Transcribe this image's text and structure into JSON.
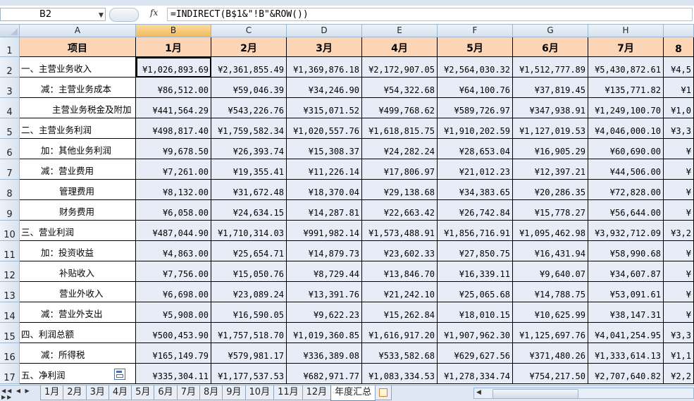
{
  "formula_bar": {
    "name_box": "B2",
    "fx_label": "fx",
    "formula": "=INDIRECT(B$1&\"!B\"&ROW())"
  },
  "columns": [
    "A",
    "B",
    "C",
    "D",
    "E",
    "F",
    "G",
    "H",
    ""
  ],
  "row_numbers": [
    "1",
    "2",
    "3",
    "4",
    "5",
    "6",
    "7",
    "8",
    "9",
    "10",
    "11",
    "12",
    "13",
    "14",
    "15",
    "16",
    "17"
  ],
  "header_row": {
    "label": "项目",
    "months": [
      "1月",
      "2月",
      "3月",
      "4月",
      "5月",
      "6月",
      "7月",
      "8"
    ]
  },
  "rows": [
    {
      "label": "一、主营业务收入",
      "indent": 0,
      "values": [
        "¥1,026,893.69",
        "¥2,361,855.49",
        "¥1,369,876.18",
        "¥2,172,907.05",
        "¥2,564,030.32",
        "¥1,512,777.89",
        "¥5,430,872.61",
        "¥4,5"
      ]
    },
    {
      "label": "减：主营业务成本",
      "indent": 1,
      "values": [
        "¥86,512.00",
        "¥59,046.39",
        "¥34,246.90",
        "¥54,322.68",
        "¥64,100.76",
        "¥37,819.45",
        "¥135,771.82",
        "¥1"
      ]
    },
    {
      "label": "主营业务税金及附加",
      "indent": 2,
      "values": [
        "¥441,564.29",
        "¥543,226.76",
        "¥315,071.52",
        "¥499,768.62",
        "¥589,726.97",
        "¥347,938.91",
        "¥1,249,100.70",
        "¥1,0"
      ]
    },
    {
      "label": "二、主营业务利润",
      "indent": 0,
      "values": [
        "¥498,817.40",
        "¥1,759,582.34",
        "¥1,020,557.76",
        "¥1,618,815.75",
        "¥1,910,202.59",
        "¥1,127,019.53",
        "¥4,046,000.10",
        "¥3,3"
      ]
    },
    {
      "label": "加：其他业务利润",
      "indent": 1,
      "values": [
        "¥9,678.50",
        "¥26,393.74",
        "¥15,308.37",
        "¥24,282.24",
        "¥28,653.04",
        "¥16,905.29",
        "¥60,690.00",
        "¥"
      ]
    },
    {
      "label": "减：营业费用",
      "indent": 1,
      "values": [
        "¥7,261.00",
        "¥19,355.41",
        "¥11,226.14",
        "¥17,806.97",
        "¥21,012.23",
        "¥12,397.21",
        "¥44,506.00",
        "¥"
      ]
    },
    {
      "label": "管理费用",
      "indent": 3,
      "values": [
        "¥8,132.00",
        "¥31,672.48",
        "¥18,370.04",
        "¥29,138.68",
        "¥34,383.65",
        "¥20,286.35",
        "¥72,828.00",
        "¥"
      ]
    },
    {
      "label": "财务费用",
      "indent": 3,
      "values": [
        "¥6,058.00",
        "¥24,634.15",
        "¥14,287.81",
        "¥22,663.42",
        "¥26,742.84",
        "¥15,778.27",
        "¥56,644.00",
        "¥"
      ]
    },
    {
      "label": "三、营业利润",
      "indent": 0,
      "values": [
        "¥487,044.90",
        "¥1,710,314.03",
        "¥991,982.14",
        "¥1,573,488.91",
        "¥1,856,716.91",
        "¥1,095,462.98",
        "¥3,932,712.09",
        "¥3,2"
      ]
    },
    {
      "label": "加：投资收益",
      "indent": 1,
      "values": [
        "¥4,863.00",
        "¥25,654.71",
        "¥14,879.73",
        "¥23,602.33",
        "¥27,850.75",
        "¥16,431.94",
        "¥58,990.68",
        "¥"
      ]
    },
    {
      "label": "补贴收入",
      "indent": 3,
      "values": [
        "¥7,756.00",
        "¥15,050.76",
        "¥8,729.44",
        "¥13,846.70",
        "¥16,339.11",
        "¥9,640.07",
        "¥34,607.87",
        "¥"
      ]
    },
    {
      "label": "营业外收入",
      "indent": 3,
      "values": [
        "¥6,698.00",
        "¥23,089.24",
        "¥13,391.76",
        "¥21,242.10",
        "¥25,065.68",
        "¥14,788.75",
        "¥53,091.61",
        "¥"
      ]
    },
    {
      "label": "减：营业外支出",
      "indent": 1,
      "values": [
        "¥5,908.00",
        "¥16,590.05",
        "¥9,622.23",
        "¥15,262.84",
        "¥18,010.15",
        "¥10,625.99",
        "¥38,147.31",
        "¥"
      ]
    },
    {
      "label": "四、利润总额",
      "indent": 0,
      "values": [
        "¥500,453.90",
        "¥1,757,518.70",
        "¥1,019,360.85",
        "¥1,616,917.20",
        "¥1,907,962.30",
        "¥1,125,697.76",
        "¥4,041,254.95",
        "¥3,3"
      ]
    },
    {
      "label": "减：所得税",
      "indent": 1,
      "values": [
        "¥165,149.79",
        "¥579,981.17",
        "¥336,389.08",
        "¥533,582.68",
        "¥629,627.56",
        "¥371,480.26",
        "¥1,333,614.13",
        "¥1,1"
      ]
    },
    {
      "label": "五、净利润",
      "indent": 0,
      "values": [
        "¥335,304.11",
        "¥1,177,537.53",
        "¥682,971.77",
        "¥1,083,334.53",
        "¥1,278,334.74",
        "¥754,217.50",
        "¥2,707,640.82",
        "¥2,2"
      ]
    }
  ],
  "sheet_tabs": [
    "1月",
    "2月",
    "3月",
    "4月",
    "5月",
    "6月",
    "7月",
    "8月",
    "9月",
    "10月",
    "11月",
    "12月",
    "年度汇总"
  ],
  "active_tab": "年度汇总",
  "tab_nav_label": "◀◀ ◀ ▶ ▶▶"
}
